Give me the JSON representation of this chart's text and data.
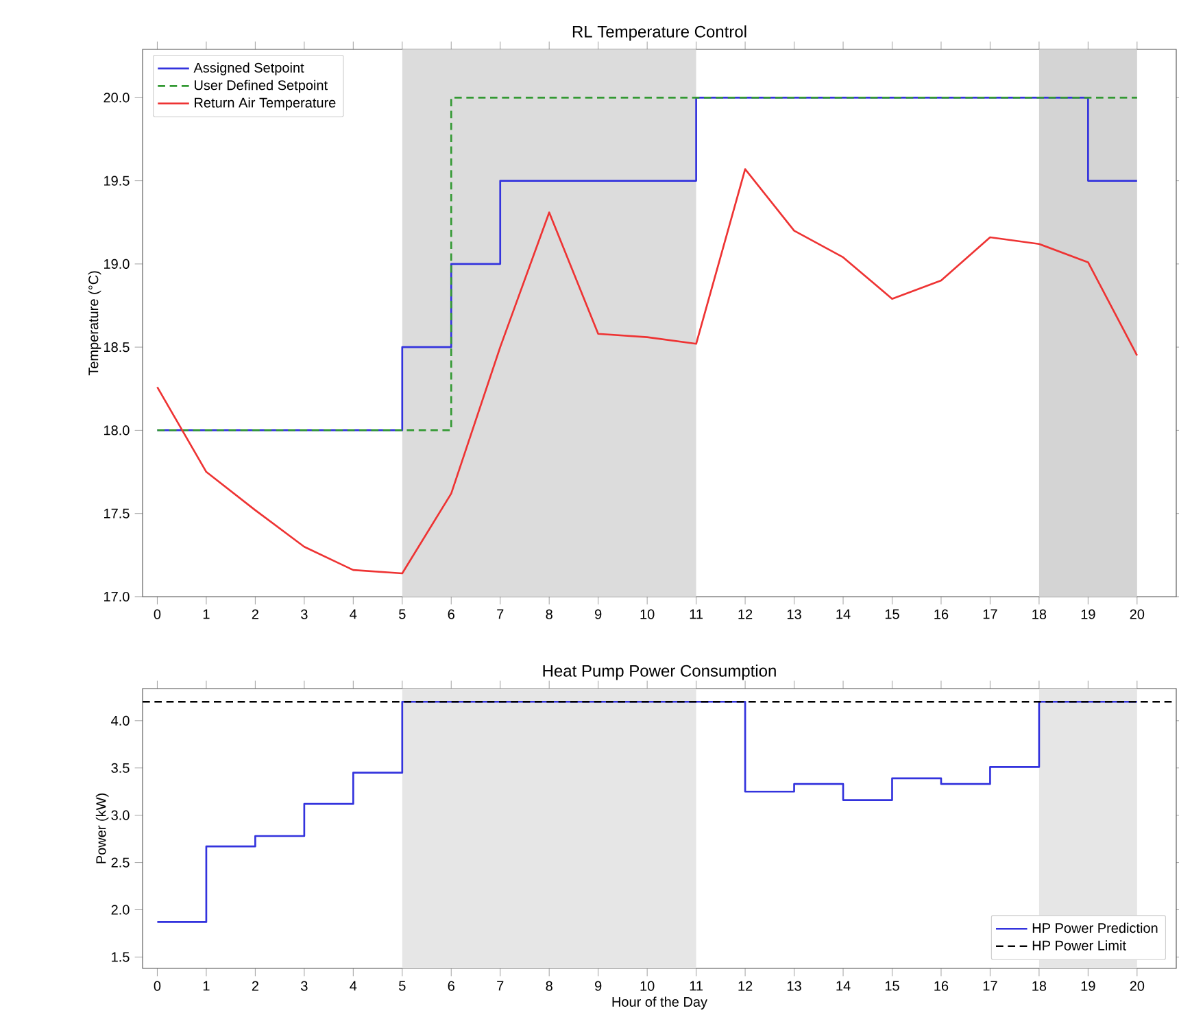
{
  "chart_data": [
    {
      "type": "line",
      "title": "RL Temperature Control",
      "ylabel": "Temperature (°C)",
      "x": [
        0,
        1,
        2,
        3,
        4,
        5,
        6,
        7,
        8,
        9,
        10,
        11,
        12,
        13,
        14,
        15,
        16,
        17,
        18,
        19,
        20
      ],
      "xlim": [
        -0.3,
        20.8
      ],
      "xticks": [
        0,
        1,
        2,
        3,
        4,
        5,
        6,
        7,
        8,
        9,
        10,
        11,
        12,
        13,
        14,
        15,
        16,
        17,
        18,
        19,
        20
      ],
      "ylim": [
        17.0,
        20.29
      ],
      "yticks": [
        {
          "value": 17.0,
          "label": "17.0"
        },
        {
          "value": 17.5,
          "label": "17.5"
        },
        {
          "value": 18.0,
          "label": "18.0"
        },
        {
          "value": 18.5,
          "label": "18.5"
        },
        {
          "value": 19.0,
          "label": "19.0"
        },
        {
          "value": 19.5,
          "label": "19.5"
        },
        {
          "value": 20.0,
          "label": "20.0"
        }
      ],
      "series": [
        {
          "name": "Assigned Setpoint",
          "type": "step",
          "color": "#3333dd",
          "values": [
            18,
            18,
            18,
            18,
            18,
            18.5,
            19,
            19.5,
            19.5,
            19.5,
            19.5,
            20,
            20,
            20,
            20,
            20,
            20,
            20,
            20,
            19.5,
            19.5
          ]
        },
        {
          "name": "User Defined Setpoint",
          "type": "step",
          "color": "#339933",
          "line_style": "dashed",
          "values": [
            18,
            18,
            18,
            18,
            18,
            18,
            20,
            20,
            20,
            20,
            20,
            20,
            20,
            20,
            20,
            20,
            20,
            20,
            20,
            20,
            20
          ]
        },
        {
          "name": "Return Air Temperature",
          "type": "line",
          "color": "#ee3333",
          "values": [
            18.26,
            17.75,
            17.52,
            17.3,
            17.16,
            17.14,
            17.62,
            18.5,
            19.31,
            18.58,
            18.56,
            18.52,
            19.57,
            19.2,
            19.04,
            18.79,
            18.9,
            19.16,
            19.12,
            19.01,
            18.45
          ]
        }
      ],
      "bands": [
        {
          "axis": "x",
          "from": 5,
          "to": 11,
          "color": "#dcdcdc"
        },
        {
          "axis": "x",
          "from": 18,
          "to": 20,
          "color": "#d4d4d4"
        }
      ],
      "legend": "top left",
      "grid": false,
      "marker": "none"
    },
    {
      "type": "step",
      "title": "Heat Pump Power Consumption",
      "xlabel": "Hour of the Day",
      "ylabel": "Power (kW)",
      "x": [
        0,
        1,
        2,
        3,
        4,
        5,
        6,
        7,
        8,
        9,
        10,
        11,
        12,
        13,
        14,
        15,
        16,
        17,
        18,
        19,
        20
      ],
      "xlim": [
        -0.3,
        20.8
      ],
      "xticks": [
        0,
        1,
        2,
        3,
        4,
        5,
        6,
        7,
        8,
        9,
        10,
        11,
        12,
        13,
        14,
        15,
        16,
        17,
        18,
        19,
        20
      ],
      "ylim": [
        1.38,
        4.34
      ],
      "yticks": [
        {
          "value": 1.5,
          "label": "1.5"
        },
        {
          "value": 2.0,
          "label": "2.0"
        },
        {
          "value": 2.5,
          "label": "2.5"
        },
        {
          "value": 3.0,
          "label": "3.0"
        },
        {
          "value": 3.5,
          "label": "3.5"
        },
        {
          "value": 4.0,
          "label": "4.0"
        }
      ],
      "series": [
        {
          "name": "HP Power Prediction",
          "color": "#3333dd",
          "values": [
            1.87,
            2.67,
            2.78,
            3.12,
            3.45,
            4.2,
            4.2,
            4.2,
            4.2,
            4.2,
            4.2,
            4.2,
            3.25,
            3.33,
            3.16,
            3.39,
            3.33,
            3.51,
            4.2,
            4.2,
            4.2
          ]
        }
      ],
      "ref_lines": [
        {
          "axis": "y",
          "value": 4.2,
          "label": "HP Power Limit",
          "color": "#000000",
          "line_style": "dashed"
        }
      ],
      "bands": [
        {
          "axis": "x",
          "from": 5,
          "to": 11,
          "color": "#e6e6e6"
        },
        {
          "axis": "x",
          "from": 18,
          "to": 20,
          "color": "#e6e6e6"
        }
      ],
      "legend": "bottom right",
      "grid": false,
      "marker": "none"
    }
  ]
}
